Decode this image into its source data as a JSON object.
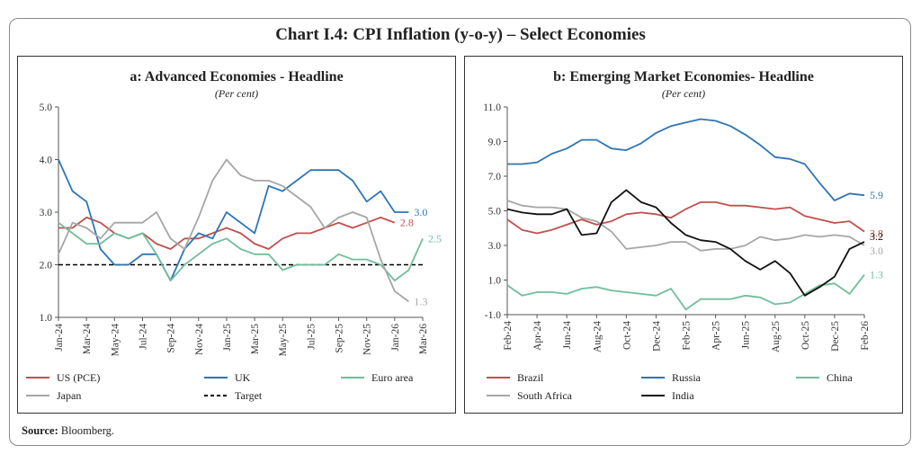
{
  "title": "Chart I.4: CPI Inflation (y-o-y) – Select Economies",
  "source_label": "Source:",
  "source_text": "Bloomberg.",
  "chart_data": [
    {
      "type": "line",
      "title": "a: Advanced Economies - Headline",
      "subtitle": "(Per cent)",
      "x": [
        "Jan-24",
        "Feb-24",
        "Mar-24",
        "Apr-24",
        "May-24",
        "Jun-24",
        "Jul-24",
        "Aug-24",
        "Sep-24",
        "Oct-24",
        "Nov-24",
        "Dec-24",
        "Jan-25",
        "Feb-25",
        "Mar-25",
        "Apr-25",
        "May-25",
        "Jun-25",
        "Jul-25",
        "Aug-25",
        "Sep-25",
        "Oct-25",
        "Nov-25",
        "Dec-25",
        "Jan-26",
        "Feb-26",
        "Mar-26"
      ],
      "x_ticks": [
        "Jan-24",
        "Mar-24",
        "May-24",
        "Jul-24",
        "Sep-24",
        "Nov-24",
        "Jan-25",
        "Mar-25",
        "May-25",
        "Jul-25",
        "Sep-25",
        "Nov-25",
        "Jan-26",
        "Mar-26"
      ],
      "ylim": [
        1.0,
        5.0
      ],
      "y_ticks": [
        "1.0",
        "2.0",
        "3.0",
        "4.0",
        "5.0"
      ],
      "series": [
        {
          "name": "US (PCE)",
          "color": "#c0504d",
          "end_label": "2.8",
          "values": [
            2.7,
            2.7,
            2.9,
            2.8,
            2.6,
            2.5,
            2.6,
            2.4,
            2.3,
            2.5,
            2.5,
            2.6,
            2.7,
            2.6,
            2.4,
            2.3,
            2.5,
            2.6,
            2.6,
            2.7,
            2.8,
            2.7,
            2.8,
            2.9,
            2.8,
            null,
            null
          ]
        },
        {
          "name": "UK",
          "color": "#2e75b6",
          "end_label": "3.0",
          "values": [
            4.0,
            3.4,
            3.2,
            2.3,
            2.0,
            2.0,
            2.2,
            2.2,
            1.7,
            2.3,
            2.6,
            2.5,
            3.0,
            2.8,
            2.6,
            3.5,
            3.4,
            3.6,
            3.8,
            3.8,
            3.8,
            3.6,
            3.2,
            3.4,
            3.0,
            3.0,
            null
          ]
        },
        {
          "name": "Euro area",
          "color": "#6fbf9a",
          "end_label": "2.5",
          "values": [
            2.8,
            2.6,
            2.4,
            2.4,
            2.6,
            2.5,
            2.6,
            2.2,
            1.7,
            2.0,
            2.2,
            2.4,
            2.5,
            2.3,
            2.2,
            2.2,
            1.9,
            2.0,
            2.0,
            2.0,
            2.2,
            2.1,
            2.1,
            2.0,
            1.7,
            1.9,
            2.5
          ]
        },
        {
          "name": "Japan",
          "color": "#a6a6a6",
          "end_label": "1.3",
          "values": [
            2.2,
            2.8,
            2.7,
            2.5,
            2.8,
            2.8,
            2.8,
            3.0,
            2.5,
            2.3,
            2.9,
            3.6,
            4.0,
            3.7,
            3.6,
            3.6,
            3.5,
            3.3,
            3.1,
            2.7,
            2.9,
            3.0,
            2.9,
            2.1,
            1.5,
            1.3,
            null
          ]
        }
      ],
      "reference_line": {
        "name": "Target",
        "value": 2.0,
        "color": "#000000"
      }
    },
    {
      "type": "line",
      "title": "b: Emerging Market Economies- Headline",
      "subtitle": "(Per cent)",
      "x": [
        "Feb-24",
        "Mar-24",
        "Apr-24",
        "May-24",
        "Jun-24",
        "Jul-24",
        "Aug-24",
        "Sep-24",
        "Oct-24",
        "Nov-24",
        "Dec-24",
        "Jan-25",
        "Feb-25",
        "Mar-25",
        "Apr-25",
        "May-25",
        "Jun-25",
        "Jul-25",
        "Aug-25",
        "Sep-25",
        "Oct-25",
        "Nov-25",
        "Dec-25",
        "Jan-26",
        "Feb-26"
      ],
      "x_ticks": [
        "Feb-24",
        "Apr-24",
        "Jun-24",
        "Aug-24",
        "Oct-24",
        "Dec-24",
        "Feb-25",
        "Apr-25",
        "Jun-25",
        "Aug-25",
        "Oct-25",
        "Dec-25",
        "Feb-26"
      ],
      "ylim": [
        -1.0,
        11.0
      ],
      "y_ticks": [
        "-1.0",
        "1.0",
        "3.0",
        "5.0",
        "7.0",
        "9.0",
        "11.0"
      ],
      "series": [
        {
          "name": "Brazil",
          "color": "#c0504d",
          "end_label": "3.8",
          "values": [
            4.5,
            3.9,
            3.7,
            3.9,
            4.2,
            4.5,
            4.2,
            4.4,
            4.8,
            4.9,
            4.8,
            4.6,
            5.1,
            5.5,
            5.5,
            5.3,
            5.3,
            5.2,
            5.1,
            5.2,
            4.7,
            4.5,
            4.3,
            4.4,
            3.8
          ]
        },
        {
          "name": "Russia",
          "color": "#2e75b6",
          "end_label": "5.9",
          "values": [
            7.7,
            7.7,
            7.8,
            8.3,
            8.6,
            9.1,
            9.1,
            8.6,
            8.5,
            8.9,
            9.5,
            9.9,
            10.1,
            10.3,
            10.2,
            9.9,
            9.4,
            8.8,
            8.1,
            8.0,
            7.7,
            6.6,
            5.6,
            6.0,
            5.9
          ]
        },
        {
          "name": "China",
          "color": "#6fbf9a",
          "end_label": "1.3",
          "values": [
            0.7,
            0.1,
            0.3,
            0.3,
            0.2,
            0.5,
            0.6,
            0.4,
            0.3,
            0.2,
            0.1,
            0.5,
            -0.7,
            -0.1,
            -0.1,
            -0.1,
            0.1,
            0.0,
            -0.4,
            -0.3,
            0.2,
            0.7,
            0.8,
            0.2,
            1.3
          ]
        },
        {
          "name": "South Africa",
          "color": "#a6a6a6",
          "end_label": "3.0",
          "values": [
            5.6,
            5.3,
            5.2,
            5.2,
            5.1,
            4.6,
            4.4,
            3.8,
            2.8,
            2.9,
            3.0,
            3.2,
            3.2,
            2.7,
            2.8,
            2.8,
            3.0,
            3.5,
            3.3,
            3.4,
            3.6,
            3.5,
            3.6,
            3.5,
            3.0
          ]
        },
        {
          "name": "India",
          "color": "#111111",
          "end_label": "3.2",
          "values": [
            5.1,
            4.9,
            4.8,
            4.8,
            5.1,
            3.6,
            3.7,
            5.5,
            6.2,
            5.5,
            5.2,
            4.3,
            3.6,
            3.3,
            3.2,
            2.8,
            2.1,
            1.6,
            2.1,
            1.4,
            0.1,
            0.6,
            1.2,
            2.8,
            3.2
          ]
        }
      ]
    }
  ]
}
